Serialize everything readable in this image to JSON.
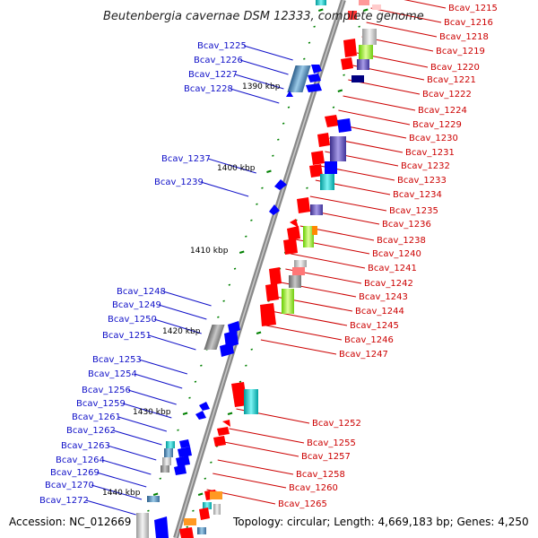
{
  "title": "Beutenbergia cavernae DSM 12333, complete genome",
  "footer": {
    "accession": "Accession: NC_012669",
    "topology": "Topology: circular; Length: 4,669,183 bp; Genes: 4,250"
  },
  "kbp_marks": [
    {
      "text": "1390 kbp"
    },
    {
      "text": "1400 kbp"
    },
    {
      "text": "1410 kbp"
    },
    {
      "text": "1420 kbp"
    },
    {
      "text": "1430 kbp"
    },
    {
      "text": "1440 kbp"
    }
  ],
  "left_labels": [
    {
      "text": "Bcav_1225"
    },
    {
      "text": "Bcav_1226"
    },
    {
      "text": "Bcav_1227"
    },
    {
      "text": "Bcav_1228"
    },
    {
      "text": "Bcav_1237"
    },
    {
      "text": "Bcav_1239"
    },
    {
      "text": "Bcav_1248"
    },
    {
      "text": "Bcav_1249"
    },
    {
      "text": "Bcav_1250"
    },
    {
      "text": "Bcav_1251"
    },
    {
      "text": "Bcav_1253"
    },
    {
      "text": "Bcav_1254"
    },
    {
      "text": "Bcav_1256"
    },
    {
      "text": "Bcav_1259"
    },
    {
      "text": "Bcav_1261"
    },
    {
      "text": "Bcav_1262"
    },
    {
      "text": "Bcav_1263"
    },
    {
      "text": "Bcav_1264"
    },
    {
      "text": "Bcav_1269"
    },
    {
      "text": "Bcav_1270"
    },
    {
      "text": "Bcav_1272"
    }
  ],
  "right_labels": [
    {
      "text": "Bcav_1215"
    },
    {
      "text": "Bcav_1216"
    },
    {
      "text": "Bcav_1218"
    },
    {
      "text": "Bcav_1219"
    },
    {
      "text": "Bcav_1220"
    },
    {
      "text": "Bcav_1221"
    },
    {
      "text": "Bcav_1222"
    },
    {
      "text": "Bcav_1224"
    },
    {
      "text": "Bcav_1229"
    },
    {
      "text": "Bcav_1230"
    },
    {
      "text": "Bcav_1231"
    },
    {
      "text": "Bcav_1232"
    },
    {
      "text": "Bcav_1233"
    },
    {
      "text": "Bcav_1234"
    },
    {
      "text": "Bcav_1235"
    },
    {
      "text": "Bcav_1236"
    },
    {
      "text": "Bcav_1238"
    },
    {
      "text": "Bcav_1240"
    },
    {
      "text": "Bcav_1241"
    },
    {
      "text": "Bcav_1242"
    },
    {
      "text": "Bcav_1243"
    },
    {
      "text": "Bcav_1244"
    },
    {
      "text": "Bcav_1245"
    },
    {
      "text": "Bcav_1246"
    },
    {
      "text": "Bcav_1247"
    },
    {
      "text": "Bcav_1252"
    },
    {
      "text": "Bcav_1255"
    },
    {
      "text": "Bcav_1257"
    },
    {
      "text": "Bcav_1258"
    },
    {
      "text": "Bcav_1260"
    },
    {
      "text": "Bcav_1265"
    }
  ],
  "colors": {
    "forward_strand": "#ff0000",
    "reverse_strand": "#0000ff",
    "backbone": "#8a8a8a",
    "tick": "#008000",
    "label_left": "#1010c8",
    "label_right": "#cc0000"
  }
}
